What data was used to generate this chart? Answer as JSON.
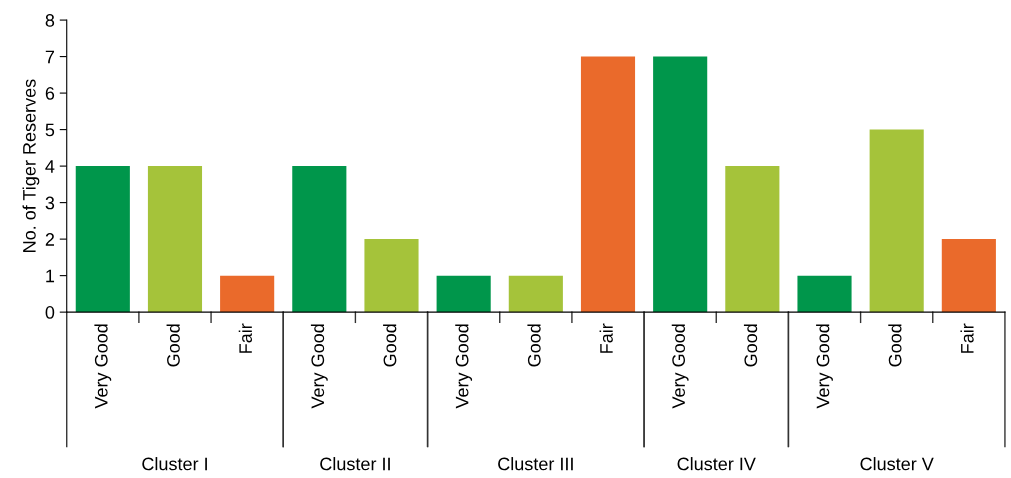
{
  "chart_data": {
    "type": "bar",
    "ylabel": "No. of Tiger Reserves",
    "categories": [
      "Very Good",
      "Good",
      "Fair",
      "Very Good",
      "Good",
      "Very Good",
      "Good",
      "Fair",
      "Very Good",
      "Good",
      "Very Good",
      "Good",
      "Fair"
    ],
    "values": [
      4,
      4,
      1,
      4,
      2,
      1,
      1,
      7,
      7,
      4,
      1,
      5,
      2
    ],
    "colors": [
      "#00964b",
      "#a5c33a",
      "#ea6a2b",
      "#00964b",
      "#a5c33a",
      "#00964b",
      "#a5c33a",
      "#ea6a2b",
      "#00964b",
      "#a5c33a",
      "#00964b",
      "#a5c33a",
      "#ea6a2b"
    ],
    "annotations": [
      "Cluster I",
      "Cluster II",
      "Cluster III",
      "Cluster IV",
      "Cluster V"
    ],
    "ylim": [
      0,
      8
    ],
    "yticks": [
      0,
      1,
      2,
      3,
      4,
      5,
      6,
      7,
      8
    ],
    "grid": false,
    "legend": false
  }
}
